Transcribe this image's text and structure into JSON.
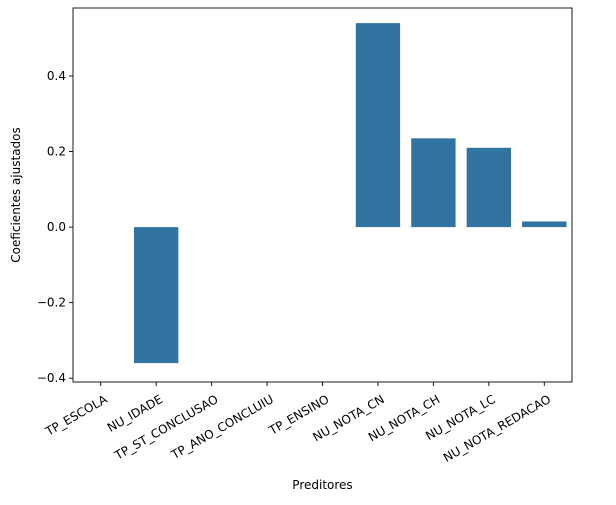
{
  "chart_data": {
    "type": "bar",
    "categories": [
      "TP_ESCOLA",
      "NU_IDADE",
      "TP_ST_CONCLUSAO",
      "TP_ANO_CONCLUIU",
      "TP_ENSINO",
      "NU_NOTA_CN",
      "NU_NOTA_CH",
      "NU_NOTA_LC",
      "NU_NOTA_REDACAO"
    ],
    "values": [
      0.0,
      -0.36,
      0.0,
      0.0,
      0.0,
      0.54,
      0.235,
      0.21,
      0.015
    ],
    "xlabel": "Preditores",
    "ylabel": "Coeficientes ajustados",
    "ylim": [
      -0.41,
      0.58
    ],
    "yticks": [
      -0.4,
      -0.2,
      0.0,
      0.2,
      0.4
    ],
    "ytick_labels": [
      "−0.4",
      "−0.2",
      "0.0",
      "0.2",
      "0.4"
    ],
    "bar_color": "#3274a1",
    "grid": false
  }
}
